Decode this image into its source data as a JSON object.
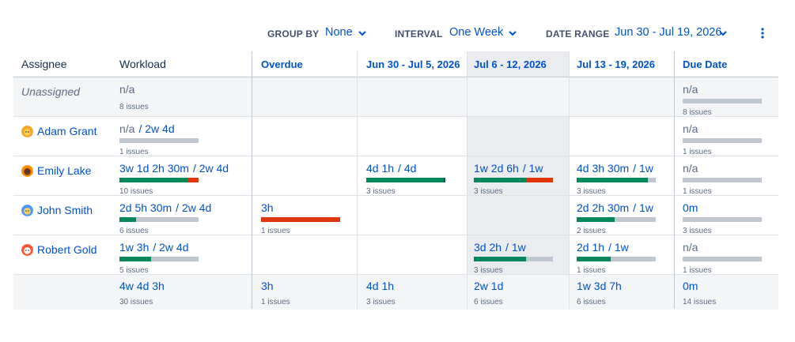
{
  "toolbar": {
    "group_by_label": "GROUP BY",
    "group_by_value": "None",
    "interval_label": "INTERVAL",
    "interval_value": "One Week",
    "date_range_label": "DATE RANGE",
    "date_range_value": "Jun 30 - Jul 19, 2026",
    "more_icon": "more-vertical-icon",
    "chevron_icon": "chevron-down-icon"
  },
  "columns": {
    "assignee": "Assignee",
    "workload": "Workload",
    "overdue": "Overdue",
    "week1": "Jun 30 - Jul 5, 2026",
    "week2": "Jul 6 - 12, 2026",
    "week3": "Jul 13 - 19, 2026",
    "due_date": "Due Date"
  },
  "colors": {
    "link": "#0052cc",
    "progress_done": "#00875a",
    "progress_over": "#de350b",
    "progress_empty": "#c1c7d0"
  },
  "rows": [
    {
      "assignee": "Unassigned",
      "avatar": null,
      "workload": {
        "value": "n/a",
        "capacity": "",
        "count": "8 issues",
        "bar": false
      },
      "overdue": null,
      "week1": null,
      "week2": null,
      "week3": null,
      "due": {
        "value": "n/a",
        "count": "8 issues",
        "bar": true,
        "fill": 0
      }
    },
    {
      "assignee": "Adam Grant",
      "avatar": "avatar-yellow-icon",
      "workload": {
        "value": "n/a",
        "capacity": "/ 2w 4d",
        "count": "1 issues",
        "bar": true,
        "fill": 0
      },
      "overdue": null,
      "week1": null,
      "week2": null,
      "week3": null,
      "due": {
        "value": "n/a",
        "count": "1 issues",
        "bar": true,
        "fill": 0
      }
    },
    {
      "assignee": "Emily Lake",
      "avatar": "avatar-orange-icon",
      "workload": {
        "value": "3w 1d 2h 30m",
        "capacity": "/ 2w 4d",
        "count": "10 issues",
        "bar": true,
        "fill": 0.87,
        "over": 0.13
      },
      "overdue": null,
      "week1": {
        "value": "4d 1h",
        "capacity": "/ 4d",
        "count": "3 issues",
        "bar": true,
        "fill": 0.98,
        "over": 0,
        "marker": true
      },
      "week2": {
        "value": "1w 2d 6h",
        "capacity": "/ 1w",
        "count": "3 issues",
        "bar": true,
        "fill": 0.66,
        "over": 0.34
      },
      "week3": {
        "value": "4d 3h 30m",
        "capacity": "/ 1w",
        "count": "3 issues",
        "bar": true,
        "fill": 0.9,
        "over": 0
      },
      "due": {
        "value": "n/a",
        "count": "1 issues",
        "bar": true,
        "fill": 0
      }
    },
    {
      "assignee": "John Smith",
      "avatar": "avatar-blue-icon",
      "workload": {
        "value": "2d 5h 30m",
        "capacity": "/ 2w 4d",
        "count": "6 issues",
        "bar": true,
        "fill": 0.21,
        "over": 0
      },
      "overdue": {
        "value": "3h",
        "capacity": "",
        "count": "1 issues",
        "bar": true,
        "fill": 0,
        "over": 1
      },
      "week1": null,
      "week2": null,
      "week3": {
        "value": "2d 2h 30m",
        "capacity": "/ 1w",
        "count": "2 issues",
        "bar": true,
        "fill": 0.48,
        "over": 0
      },
      "due": {
        "value": "0m",
        "count": "3 issues",
        "bar": true,
        "fill": 0
      }
    },
    {
      "assignee": "Robert Gold",
      "avatar": "avatar-red-icon",
      "workload": {
        "value": "1w 3h",
        "capacity": "/ 2w 4d",
        "count": "5 issues",
        "bar": true,
        "fill": 0.4,
        "over": 0
      },
      "overdue": null,
      "week1": null,
      "week2": {
        "value": "3d 2h",
        "capacity": "/ 1w",
        "count": "3 issues",
        "bar": true,
        "fill": 0.66,
        "over": 0
      },
      "week3": {
        "value": "2d 1h",
        "capacity": "/ 1w",
        "count": "1 issues",
        "bar": true,
        "fill": 0.43,
        "over": 0
      },
      "due": {
        "value": "n/a",
        "count": "1 issues",
        "bar": true,
        "fill": 0
      }
    }
  ],
  "totals": {
    "workload": {
      "value": "4w 4d 3h",
      "count": "30 issues"
    },
    "overdue": {
      "value": "3h",
      "count": "1 issues"
    },
    "week1": {
      "value": "4d 1h",
      "count": "3 issues"
    },
    "week2": {
      "value": "2w 1d",
      "count": "6 issues"
    },
    "week3": {
      "value": "1w 3d 7h",
      "count": "6 issues"
    },
    "due": {
      "value": "0m",
      "count": "14 issues"
    }
  }
}
